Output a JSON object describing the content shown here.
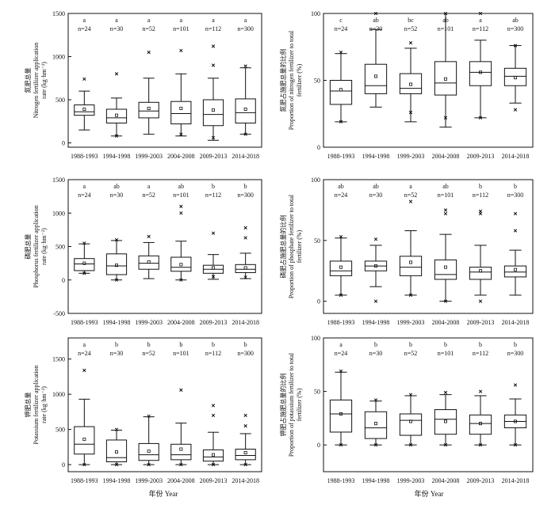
{
  "chart_data": [
    {
      "type": "box",
      "id": "n-rate",
      "ylabel_cn": "氮肥总量",
      "ylabel_en1": "Nitrogen fertilizer application",
      "ylabel_en2": "rate (kg·hm⁻²)",
      "ylim": [
        -50,
        1500
      ],
      "yticks": [
        0,
        500,
        1000,
        1500
      ],
      "ytick_labels": [
        "0",
        "500",
        "1000",
        "1500"
      ],
      "categories": [
        "1988-1993",
        "1994-1998",
        "1999-2003",
        "2004-2008",
        "2009-2013",
        "2014-2018"
      ],
      "letters": [
        "a",
        "a",
        "a",
        "a",
        "a",
        "a"
      ],
      "n_labels": [
        "n=24",
        "n=30",
        "n=52",
        "n=101",
        "n=112",
        "n=300"
      ],
      "boxes": [
        {
          "q1": 320,
          "median": 360,
          "q3": 440,
          "wlo": 150,
          "whi": 600,
          "mean": 390,
          "outliers": [
            740
          ]
        },
        {
          "q1": 230,
          "median": 290,
          "q3": 390,
          "wlo": 80,
          "whi": 520,
          "mean": 320,
          "outliers": [
            800,
            80
          ]
        },
        {
          "q1": 290,
          "median": 370,
          "q3": 470,
          "wlo": 100,
          "whi": 750,
          "mean": 400,
          "outliers": [
            1050
          ]
        },
        {
          "q1": 220,
          "median": 340,
          "q3": 480,
          "wlo": 80,
          "whi": 800,
          "mean": 400,
          "outliers": [
            1070,
            100
          ]
        },
        {
          "q1": 200,
          "median": 330,
          "q3": 500,
          "wlo": 30,
          "whi": 750,
          "mean": 380,
          "outliers": [
            900,
            1120,
            60
          ]
        },
        {
          "q1": 230,
          "median": 350,
          "q3": 510,
          "wlo": 100,
          "whi": 870,
          "mean": 390,
          "outliers": [
            890,
            100
          ]
        }
      ]
    },
    {
      "type": "box",
      "id": "n-prop",
      "ylabel_cn": "氮肥占施肥总量的比例",
      "ylabel_en1": "Proportion of nitrogen fertilizer to total",
      "ylabel_en2": "fertilizer (%)",
      "ylim": [
        0,
        100
      ],
      "yticks": [
        0,
        50,
        100
      ],
      "ytick_labels": [
        "0",
        "50",
        "100"
      ],
      "categories": [
        "1988-1993",
        "1994-1998",
        "1999-2003",
        "2004-2008",
        "2009-2013",
        "2014-2018"
      ],
      "letters": [
        "c",
        "ab",
        "bc",
        "ab",
        "a",
        "ab"
      ],
      "n_labels": [
        "n=24",
        "n=30",
        "n=52",
        "n=101",
        "n=112",
        "n=300"
      ],
      "boxes": [
        {
          "q1": 32,
          "median": 42,
          "q3": 50,
          "wlo": 19,
          "whi": 70,
          "mean": 43,
          "outliers": [
            71,
            19
          ]
        },
        {
          "q1": 40,
          "median": 46,
          "q3": 62,
          "wlo": 30,
          "whi": 88,
          "mean": 53,
          "outliers": [
            100
          ]
        },
        {
          "q1": 40,
          "median": 44,
          "q3": 55,
          "wlo": 19,
          "whi": 74,
          "mean": 47,
          "outliers": [
            78,
            26
          ]
        },
        {
          "q1": 39,
          "median": 48,
          "q3": 64,
          "wlo": 15,
          "whi": 100,
          "mean": 51,
          "outliers": [
            100,
            22
          ]
        },
        {
          "q1": 46,
          "median": 56,
          "q3": 64,
          "wlo": 22,
          "whi": 80,
          "mean": 56,
          "outliers": [
            100,
            22
          ]
        },
        {
          "q1": 46,
          "median": 53,
          "q3": 59,
          "wlo": 33,
          "whi": 76,
          "mean": 52,
          "outliers": [
            76,
            28
          ]
        }
      ]
    },
    {
      "type": "box",
      "id": "p-rate",
      "ylabel_cn": "磷肥总量",
      "ylabel_en1": "Phosphorus fertilizer application",
      "ylabel_en2": "rate (kg·hm⁻²)",
      "ylim": [
        -500,
        1500
      ],
      "yticks": [
        -500,
        0,
        500,
        1000,
        1500
      ],
      "ytick_labels": [
        "-500",
        "0",
        "500",
        "1000",
        "1500"
      ],
      "categories": [
        "1988-1993",
        "1994-1998",
        "1999-2003",
        "2004-2008",
        "2009-2013",
        "2014-2018"
      ],
      "letters": [
        "a",
        "ab",
        "a",
        "ab",
        "b",
        "b"
      ],
      "n_labels": [
        "n=24",
        "n=30",
        "n=52",
        "n=101",
        "n=112",
        "n=300"
      ],
      "boxes": [
        {
          "q1": 140,
          "median": 240,
          "q3": 320,
          "wlo": 100,
          "whi": 540,
          "mean": 250,
          "outliers": [
            550,
            100
          ]
        },
        {
          "q1": 80,
          "median": 210,
          "q3": 390,
          "wlo": 0,
          "whi": 590,
          "mean": 220,
          "outliers": [
            600,
            0
          ]
        },
        {
          "q1": 160,
          "median": 250,
          "q3": 360,
          "wlo": 20,
          "whi": 560,
          "mean": 270,
          "outliers": [
            650
          ]
        },
        {
          "q1": 130,
          "median": 190,
          "q3": 340,
          "wlo": 0,
          "whi": 580,
          "mean": 230,
          "outliers": [
            1000,
            1100,
            0
          ]
        },
        {
          "q1": 100,
          "median": 160,
          "q3": 220,
          "wlo": 10,
          "whi": 380,
          "mean": 180,
          "outliers": [
            700,
            50
          ]
        },
        {
          "q1": 110,
          "median": 160,
          "q3": 230,
          "wlo": 20,
          "whi": 400,
          "mean": 180,
          "outliers": [
            630,
            780,
            40
          ]
        }
      ]
    },
    {
      "type": "box",
      "id": "p-prop",
      "ylabel_cn": "磷肥占施肥总量的比例",
      "ylabel_en1": "Proportion of phosphate fertilizer to total",
      "ylabel_en2": "fertilizer (%)",
      "ylim": [
        -10,
        100
      ],
      "yticks": [
        0,
        50,
        100
      ],
      "ytick_labels": [
        "0",
        "50",
        "100"
      ],
      "categories": [
        "1988-1993",
        "1994-1998",
        "1999-2003",
        "2004-2008",
        "2009-2013",
        "2014-2018"
      ],
      "letters": [
        "ab",
        "ab",
        "a",
        "ab",
        "b",
        "b"
      ],
      "n_labels": [
        "n=24",
        "n=30",
        "n=52",
        "n=101",
        "n=112",
        "n=300"
      ],
      "boxes": [
        {
          "q1": 21,
          "median": 25,
          "q3": 33,
          "wlo": 5,
          "whi": 52,
          "mean": 28,
          "outliers": [
            53,
            5
          ]
        },
        {
          "q1": 25,
          "median": 29,
          "q3": 33,
          "wlo": 12,
          "whi": 46,
          "mean": 29,
          "outliers": [
            51,
            0
          ]
        },
        {
          "q1": 21,
          "median": 28,
          "q3": 37,
          "wlo": 5,
          "whi": 58,
          "mean": 32,
          "outliers": [
            82,
            5
          ]
        },
        {
          "q1": 18,
          "median": 22,
          "q3": 34,
          "wlo": 0,
          "whi": 55,
          "mean": 28,
          "outliers": [
            72,
            75,
            0
          ]
        },
        {
          "q1": 18,
          "median": 24,
          "q3": 28,
          "wlo": 5,
          "whi": 46,
          "mean": 25,
          "outliers": [
            72,
            74,
            0
          ]
        },
        {
          "q1": 20,
          "median": 24,
          "q3": 29,
          "wlo": 5,
          "whi": 42,
          "mean": 26,
          "outliers": [
            58,
            72
          ]
        }
      ]
    },
    {
      "type": "box",
      "id": "k-rate",
      "ylabel_cn": "钾肥总量",
      "ylabel_en1": "Potassium fertilizer application",
      "ylabel_en2": "rate (kg·hm⁻²)",
      "ylim": [
        -100,
        1800
      ],
      "yticks": [
        0,
        500,
        1000,
        1500
      ],
      "ytick_labels": [
        "0",
        "500",
        "1000",
        "1500"
      ],
      "categories": [
        "1988-1993",
        "1994-1998",
        "1999-2003",
        "2004-2008",
        "2009-2013",
        "2014-2018"
      ],
      "letters": [
        "a",
        "b",
        "b",
        "b",
        "b",
        "b"
      ],
      "n_labels": [
        "n=24",
        "n=30",
        "n=52",
        "n=101",
        "n=112",
        "n=300"
      ],
      "boxes": [
        {
          "q1": 150,
          "median": 290,
          "q3": 540,
          "wlo": 0,
          "whi": 930,
          "mean": 360,
          "outliers": [
            1340,
            0
          ]
        },
        {
          "q1": 40,
          "median": 100,
          "q3": 350,
          "wlo": 0,
          "whi": 490,
          "mean": 180,
          "outliers": [
            500,
            0
          ]
        },
        {
          "q1": 60,
          "median": 140,
          "q3": 300,
          "wlo": 0,
          "whi": 680,
          "mean": 190,
          "outliers": [
            690,
            0
          ]
        },
        {
          "q1": 70,
          "median": 140,
          "q3": 290,
          "wlo": 0,
          "whi": 590,
          "mean": 220,
          "outliers": [
            1060,
            0
          ]
        },
        {
          "q1": 50,
          "median": 110,
          "q3": 210,
          "wlo": 0,
          "whi": 460,
          "mean": 140,
          "outliers": [
            700,
            840,
            0
          ]
        },
        {
          "q1": 70,
          "median": 130,
          "q3": 220,
          "wlo": 0,
          "whi": 440,
          "mean": 170,
          "outliers": [
            550,
            700,
            0
          ]
        }
      ]
    },
    {
      "type": "box",
      "id": "k-prop",
      "ylabel_cn": "钾肥占施肥总量的比例",
      "ylabel_en1": "Proportion of potassium fertilizer to total",
      "ylabel_en2": "fertilizer (%)",
      "ylim": [
        -25,
        100
      ],
      "yticks": [
        0,
        50,
        100
      ],
      "ytick_labels": [
        "0",
        "50",
        "100"
      ],
      "categories": [
        "1988-1993",
        "1994-1998",
        "1999-2003",
        "2004-2008",
        "2009-2013",
        "2014-2018"
      ],
      "letters": [
        "a",
        "b",
        "b",
        "b",
        "b",
        "b"
      ],
      "n_labels": [
        "n=24",
        "n=30",
        "n=52",
        "n=101",
        "n=112",
        "n=300"
      ],
      "boxes": [
        {
          "q1": 12,
          "median": 29,
          "q3": 42,
          "wlo": 0,
          "whi": 68,
          "mean": 29,
          "outliers": [
            69,
            0
          ]
        },
        {
          "q1": 6,
          "median": 16,
          "q3": 31,
          "wlo": 0,
          "whi": 41,
          "mean": 20,
          "outliers": [
            42,
            0
          ]
        },
        {
          "q1": 9,
          "median": 23,
          "q3": 29,
          "wlo": 0,
          "whi": 46,
          "mean": 22,
          "outliers": [
            47,
            0
          ]
        },
        {
          "q1": 10,
          "median": 24,
          "q3": 33,
          "wlo": 0,
          "whi": 47,
          "mean": 22,
          "outliers": [
            49,
            0
          ]
        },
        {
          "q1": 10,
          "median": 20,
          "q3": 28,
          "wlo": 0,
          "whi": 46,
          "mean": 20,
          "outliers": [
            50,
            0
          ]
        },
        {
          "q1": 16,
          "median": 22,
          "q3": 28,
          "wlo": 0,
          "whi": 43,
          "mean": 22,
          "outliers": [
            56,
            0
          ]
        }
      ]
    }
  ],
  "xaxis_label": "年份 Year"
}
